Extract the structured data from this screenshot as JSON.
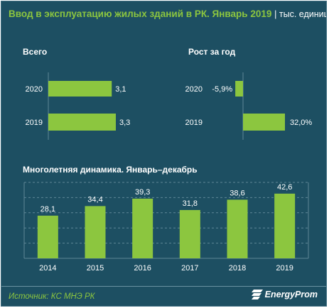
{
  "header": {
    "title": "Ввод в эксплуатацию жилых зданий в РК. Январь 2019",
    "unit": "| тыс. единиц"
  },
  "footer": {
    "source": "Источник: КС МНЭ РК",
    "brand": "EnergyProm"
  },
  "colors": {
    "background": "#1d4f62",
    "bar": "#8cc63f",
    "title": "#8cc63f",
    "text": "#ffffff",
    "grid": "#5f8797"
  },
  "chart_data": [
    {
      "type": "bar",
      "orientation": "horizontal",
      "title": "Всего",
      "categories": [
        "2020",
        "2019"
      ],
      "values": [
        3.1,
        3.3
      ],
      "data_labels": [
        "3,1",
        "3,3"
      ]
    },
    {
      "type": "bar",
      "orientation": "horizontal",
      "title": "Рост за год",
      "categories": [
        "2020",
        "2019"
      ],
      "values": [
        -5.9,
        32.0
      ],
      "data_labels": [
        "-5,9%",
        "32,0%"
      ]
    },
    {
      "type": "bar",
      "orientation": "vertical",
      "title": "Многолетняя  динамика.  Январь–декабрь",
      "categories": [
        "2014",
        "2015",
        "2016",
        "2017",
        "2018",
        "2019"
      ],
      "values": [
        28.1,
        34.4,
        39.3,
        31.8,
        38.6,
        42.6
      ],
      "data_labels": [
        "28,1",
        "34,4",
        "39,3",
        "31,8",
        "38,6",
        "42,6"
      ],
      "grid": true
    }
  ]
}
